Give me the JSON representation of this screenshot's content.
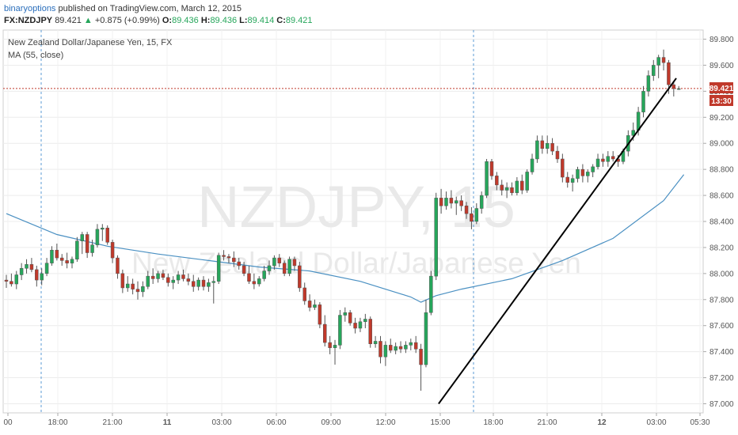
{
  "header": {
    "author": "binaryoptions",
    "published_text": "published on TradingView.com, March 12, 2015"
  },
  "quote": {
    "symbol": "FX:NZDJPY",
    "last": "89.421",
    "arrow": "▲",
    "change": "+0.875 (+0.99%)",
    "o_label": "O:",
    "o_value": "89.436",
    "h_label": "H:",
    "h_value": "89.436",
    "l_label": "L:",
    "l_value": "89.414",
    "c_label": "C:",
    "c_value": "89.421"
  },
  "chart_data": {
    "type": "candlestick",
    "title": "New Zealand Dollar/Japanese Yen, 15, FX",
    "indicator_label": "MA (55, close)",
    "watermark_symbol": "NZDJPY, 15",
    "watermark_name": "New Zealand Dollar/Japanese Yen",
    "ylim": [
      86.93,
      89.87
    ],
    "yticks": [
      "89.800",
      "89.600",
      "89.400",
      "89.200",
      "89.000",
      "88.800",
      "88.600",
      "88.400",
      "88.200",
      "88.000",
      "87.800",
      "87.600",
      "87.400",
      "87.200",
      "87.000"
    ],
    "xticks": [
      "00",
      "18:00",
      "21:00",
      "11",
      "03:00",
      "06:00",
      "09:00",
      "12:00",
      "15:00",
      "18:00",
      "21:00",
      "12",
      "03:00",
      "05:30"
    ],
    "session_separators": [
      "18:00 (Mar 11 session)",
      "18:00 (Mar 12 session)"
    ],
    "last_price_label": "89.421",
    "countdown_label": "13:30",
    "colors": {
      "up": "#26a65b",
      "down": "#c0392b",
      "ma": "#4a90c2",
      "trendline": "#000000",
      "price_line": "#c0392b",
      "separator": "#5b9bd5"
    },
    "candles_ohlc": [
      [
        87.95,
        87.99,
        87.89,
        87.94
      ],
      [
        87.94,
        88.0,
        87.9,
        87.92
      ],
      [
        87.92,
        88.02,
        87.88,
        87.99
      ],
      [
        87.99,
        88.08,
        87.95,
        88.04
      ],
      [
        88.04,
        88.11,
        88.0,
        88.07
      ],
      [
        88.07,
        88.12,
        88.01,
        88.03
      ],
      [
        88.03,
        88.06,
        87.9,
        87.95
      ],
      [
        87.95,
        88.04,
        87.91,
        88.0
      ],
      [
        88.0,
        88.12,
        87.98,
        88.08
      ],
      [
        88.08,
        88.21,
        88.06,
        88.18
      ],
      [
        88.18,
        88.23,
        88.1,
        88.12
      ],
      [
        88.12,
        88.15,
        88.06,
        88.1
      ],
      [
        88.1,
        88.16,
        88.04,
        88.08
      ],
      [
        88.08,
        88.13,
        88.04,
        88.11
      ],
      [
        88.11,
        88.28,
        88.09,
        88.25
      ],
      [
        88.25,
        88.32,
        88.15,
        88.3
      ],
      [
        88.3,
        88.32,
        88.12,
        88.16
      ],
      [
        88.16,
        88.26,
        88.13,
        88.22
      ],
      [
        88.22,
        88.38,
        88.2,
        88.34
      ],
      [
        88.34,
        88.38,
        88.25,
        88.35
      ],
      [
        88.35,
        88.37,
        88.22,
        88.24
      ],
      [
        88.24,
        88.26,
        88.08,
        88.12
      ],
      [
        88.12,
        88.14,
        87.96,
        88.0
      ],
      [
        88.0,
        88.03,
        87.85,
        87.89
      ],
      [
        87.89,
        87.98,
        87.86,
        87.92
      ],
      [
        87.92,
        87.96,
        87.84,
        87.88
      ],
      [
        87.88,
        87.94,
        87.8,
        87.86
      ],
      [
        87.86,
        87.94,
        87.82,
        87.9
      ],
      [
        87.9,
        88.02,
        87.88,
        87.98
      ],
      [
        87.98,
        88.04,
        87.92,
        87.96
      ],
      [
        87.96,
        88.02,
        87.93,
        88.0
      ],
      [
        88.0,
        88.03,
        87.95,
        87.97
      ],
      [
        87.97,
        88.0,
        87.9,
        87.93
      ],
      [
        87.93,
        87.98,
        87.88,
        87.95
      ],
      [
        87.95,
        88.02,
        87.92,
        87.99
      ],
      [
        87.99,
        88.03,
        87.94,
        87.96
      ],
      [
        87.96,
        88.0,
        87.91,
        87.94
      ],
      [
        87.94,
        87.99,
        87.86,
        87.9
      ],
      [
        87.9,
        87.97,
        87.87,
        87.95
      ],
      [
        87.95,
        87.98,
        87.87,
        87.9
      ],
      [
        87.9,
        87.96,
        87.86,
        87.93
      ],
      [
        87.93,
        87.98,
        87.77,
        87.94
      ],
      [
        87.94,
        88.16,
        87.92,
        88.14
      ],
      [
        88.14,
        88.18,
        88.1,
        88.13
      ],
      [
        88.13,
        88.15,
        88.08,
        88.12
      ],
      [
        88.12,
        88.17,
        88.05,
        88.09
      ],
      [
        88.09,
        88.12,
        88.03,
        88.06
      ],
      [
        88.06,
        88.09,
        87.98,
        88.0
      ],
      [
        88.0,
        88.06,
        87.92,
        87.94
      ],
      [
        87.94,
        88.0,
        87.88,
        87.92
      ],
      [
        87.92,
        87.98,
        87.9,
        87.96
      ],
      [
        87.96,
        88.06,
        87.94,
        88.02
      ],
      [
        88.02,
        88.1,
        87.99,
        88.06
      ],
      [
        88.06,
        88.14,
        88.03,
        88.12
      ],
      [
        88.12,
        88.15,
        88.05,
        88.08
      ],
      [
        88.08,
        88.1,
        87.98,
        88.0
      ],
      [
        88.0,
        88.13,
        87.98,
        88.11
      ],
      [
        88.11,
        88.13,
        88.02,
        88.06
      ],
      [
        88.06,
        88.09,
        87.86,
        87.89
      ],
      [
        87.89,
        87.93,
        87.76,
        87.79
      ],
      [
        87.79,
        87.84,
        87.71,
        87.74
      ],
      [
        87.74,
        87.8,
        87.72,
        87.76
      ],
      [
        87.76,
        87.78,
        87.58,
        87.61
      ],
      [
        87.61,
        87.68,
        87.44,
        87.47
      ],
      [
        87.47,
        87.52,
        87.38,
        87.43
      ],
      [
        87.43,
        87.49,
        87.3,
        87.45
      ],
      [
        87.45,
        87.72,
        87.42,
        87.68
      ],
      [
        87.68,
        87.74,
        87.63,
        87.7
      ],
      [
        87.7,
        87.72,
        87.6,
        87.62
      ],
      [
        87.62,
        87.66,
        87.54,
        87.58
      ],
      [
        87.58,
        87.66,
        87.55,
        87.63
      ],
      [
        87.63,
        87.69,
        87.58,
        87.65
      ],
      [
        87.65,
        87.67,
        87.43,
        87.46
      ],
      [
        87.46,
        87.52,
        87.43,
        87.48
      ],
      [
        87.48,
        87.52,
        87.31,
        87.36
      ],
      [
        87.36,
        87.48,
        87.29,
        87.45
      ],
      [
        87.45,
        87.5,
        87.39,
        87.41
      ],
      [
        87.41,
        87.47,
        87.38,
        87.44
      ],
      [
        87.44,
        87.48,
        87.39,
        87.42
      ],
      [
        87.42,
        87.48,
        87.39,
        87.45
      ],
      [
        87.45,
        87.5,
        87.41,
        87.47
      ],
      [
        87.47,
        87.52,
        87.39,
        87.42
      ],
      [
        87.42,
        87.46,
        87.1,
        87.3
      ],
      [
        87.3,
        87.8,
        87.28,
        87.7
      ],
      [
        87.7,
        88.02,
        87.68,
        87.98
      ],
      [
        87.98,
        88.62,
        87.95,
        88.58
      ],
      [
        88.58,
        88.65,
        88.46,
        88.52
      ],
      [
        88.52,
        88.63,
        88.49,
        88.58
      ],
      [
        88.58,
        88.64,
        88.5,
        88.54
      ],
      [
        88.54,
        88.59,
        88.45,
        88.56
      ],
      [
        88.56,
        88.6,
        88.48,
        88.52
      ],
      [
        88.52,
        88.55,
        88.42,
        88.46
      ],
      [
        88.46,
        88.51,
        88.34,
        88.4
      ],
      [
        88.4,
        88.54,
        88.38,
        88.5
      ],
      [
        88.5,
        88.63,
        88.46,
        88.6
      ],
      [
        88.6,
        88.88,
        88.58,
        88.86
      ],
      [
        88.86,
        88.88,
        88.72,
        88.75
      ],
      [
        88.75,
        88.78,
        88.64,
        88.68
      ],
      [
        88.68,
        88.72,
        88.6,
        88.64
      ],
      [
        88.64,
        88.7,
        88.58,
        88.66
      ],
      [
        88.66,
        88.7,
        88.6,
        88.62
      ],
      [
        88.62,
        88.74,
        88.6,
        88.71
      ],
      [
        88.71,
        88.76,
        88.61,
        88.64
      ],
      [
        88.64,
        88.8,
        88.62,
        88.78
      ],
      [
        88.78,
        88.92,
        88.76,
        88.88
      ],
      [
        88.88,
        89.06,
        88.85,
        89.02
      ],
      [
        89.02,
        89.06,
        88.92,
        88.96
      ],
      [
        88.96,
        89.06,
        88.92,
        89.0
      ],
      [
        89.0,
        89.04,
        88.91,
        88.94
      ],
      [
        88.94,
        88.98,
        88.85,
        88.88
      ],
      [
        88.88,
        88.92,
        88.7,
        88.74
      ],
      [
        88.74,
        88.78,
        88.66,
        88.7
      ],
      [
        88.7,
        88.76,
        88.63,
        88.73
      ],
      [
        88.73,
        88.82,
        88.7,
        88.8
      ],
      [
        88.8,
        88.84,
        88.7,
        88.75
      ],
      [
        88.75,
        88.8,
        88.7,
        88.78
      ],
      [
        88.78,
        88.84,
        88.74,
        88.82
      ],
      [
        88.82,
        88.92,
        88.8,
        88.88
      ],
      [
        88.88,
        88.92,
        88.82,
        88.86
      ],
      [
        88.86,
        88.94,
        88.82,
        88.9
      ],
      [
        88.9,
        88.94,
        88.86,
        88.88
      ],
      [
        88.88,
        88.91,
        88.82,
        88.86
      ],
      [
        88.86,
        88.96,
        88.84,
        88.94
      ],
      [
        88.94,
        89.1,
        88.9,
        89.06
      ],
      [
        89.06,
        89.16,
        89.02,
        89.1
      ],
      [
        89.1,
        89.28,
        89.06,
        89.24
      ],
      [
        89.24,
        89.44,
        89.2,
        89.4
      ],
      [
        89.4,
        89.56,
        89.36,
        89.52
      ],
      [
        89.52,
        89.64,
        89.48,
        89.6
      ],
      [
        89.6,
        89.68,
        89.5,
        89.66
      ],
      [
        89.66,
        89.72,
        89.56,
        89.62
      ],
      [
        89.62,
        89.64,
        89.38,
        89.45
      ],
      [
        89.45,
        89.48,
        89.36,
        89.42
      ],
      [
        89.42,
        89.44,
        89.41,
        89.42
      ]
    ],
    "moving_average_55": [
      [
        0,
        88.46
      ],
      [
        10,
        88.3
      ],
      [
        20,
        88.21
      ],
      [
        30,
        88.15
      ],
      [
        40,
        88.1
      ],
      [
        50,
        88.05
      ],
      [
        60,
        88.02
      ],
      [
        70,
        87.94
      ],
      [
        80,
        87.82
      ],
      [
        82,
        87.78
      ],
      [
        85,
        87.83
      ],
      [
        90,
        87.88
      ],
      [
        100,
        87.96
      ],
      [
        110,
        88.1
      ],
      [
        120,
        88.27
      ],
      [
        130,
        88.56
      ],
      [
        134,
        88.76
      ]
    ],
    "trendline": [
      [
        85.5,
        87.0
      ],
      [
        132.5,
        89.5
      ]
    ]
  }
}
